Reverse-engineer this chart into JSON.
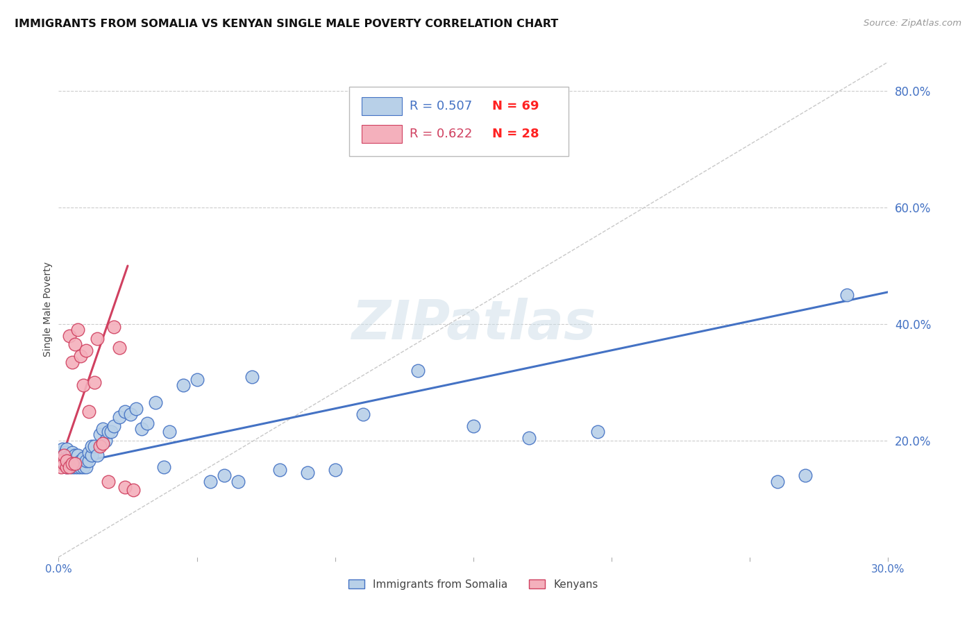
{
  "title": "IMMIGRANTS FROM SOMALIA VS KENYAN SINGLE MALE POVERTY CORRELATION CHART",
  "source": "Source: ZipAtlas.com",
  "ylabel": "Single Male Poverty",
  "xlim": [
    0.0,
    0.3
  ],
  "ylim": [
    0.0,
    0.85
  ],
  "xticks": [
    0.0,
    0.05,
    0.1,
    0.15,
    0.2,
    0.25,
    0.3
  ],
  "xticklabels": [
    "0.0%",
    "",
    "",
    "",
    "",
    "",
    "30.0%"
  ],
  "yticks_right": [
    0.2,
    0.4,
    0.6,
    0.8
  ],
  "ytick_labels_right": [
    "20.0%",
    "40.0%",
    "60.0%",
    "80.0%"
  ],
  "legend_r1": "0.507",
  "legend_n1": "69",
  "legend_r2": "0.622",
  "legend_n2": "28",
  "legend_label1": "Immigrants from Somalia",
  "legend_label2": "Kenyans",
  "watermark": "ZIPatlas",
  "blue_scatter_x": [
    0.0005,
    0.001,
    0.001,
    0.0015,
    0.0015,
    0.002,
    0.002,
    0.0025,
    0.0025,
    0.003,
    0.003,
    0.003,
    0.0035,
    0.004,
    0.004,
    0.0045,
    0.005,
    0.005,
    0.005,
    0.006,
    0.006,
    0.006,
    0.007,
    0.007,
    0.007,
    0.008,
    0.008,
    0.009,
    0.009,
    0.01,
    0.01,
    0.011,
    0.011,
    0.012,
    0.012,
    0.013,
    0.014,
    0.015,
    0.016,
    0.017,
    0.018,
    0.019,
    0.02,
    0.022,
    0.024,
    0.026,
    0.028,
    0.03,
    0.032,
    0.035,
    0.038,
    0.04,
    0.045,
    0.05,
    0.055,
    0.06,
    0.065,
    0.07,
    0.08,
    0.09,
    0.1,
    0.11,
    0.13,
    0.15,
    0.17,
    0.195,
    0.26,
    0.27,
    0.285
  ],
  "blue_scatter_y": [
    0.175,
    0.165,
    0.18,
    0.17,
    0.185,
    0.16,
    0.175,
    0.165,
    0.18,
    0.155,
    0.17,
    0.185,
    0.165,
    0.16,
    0.175,
    0.17,
    0.155,
    0.165,
    0.18,
    0.155,
    0.165,
    0.175,
    0.155,
    0.16,
    0.175,
    0.155,
    0.165,
    0.155,
    0.17,
    0.155,
    0.165,
    0.165,
    0.18,
    0.175,
    0.19,
    0.19,
    0.175,
    0.21,
    0.22,
    0.2,
    0.215,
    0.215,
    0.225,
    0.24,
    0.25,
    0.245,
    0.255,
    0.22,
    0.23,
    0.265,
    0.155,
    0.215,
    0.295,
    0.305,
    0.13,
    0.14,
    0.13,
    0.31,
    0.15,
    0.145,
    0.15,
    0.245,
    0.32,
    0.225,
    0.205,
    0.215,
    0.13,
    0.14,
    0.45
  ],
  "pink_scatter_x": [
    0.0005,
    0.001,
    0.001,
    0.0015,
    0.002,
    0.002,
    0.003,
    0.003,
    0.004,
    0.004,
    0.005,
    0.005,
    0.006,
    0.006,
    0.007,
    0.008,
    0.009,
    0.01,
    0.011,
    0.013,
    0.014,
    0.015,
    0.016,
    0.018,
    0.02,
    0.022,
    0.024,
    0.027
  ],
  "pink_scatter_y": [
    0.16,
    0.155,
    0.165,
    0.165,
    0.16,
    0.175,
    0.155,
    0.165,
    0.155,
    0.38,
    0.16,
    0.335,
    0.16,
    0.365,
    0.39,
    0.345,
    0.295,
    0.355,
    0.25,
    0.3,
    0.375,
    0.19,
    0.195,
    0.13,
    0.395,
    0.36,
    0.12,
    0.115
  ],
  "blue_line_x": [
    0.0,
    0.3
  ],
  "blue_line_y": [
    0.155,
    0.455
  ],
  "pink_line_x": [
    0.0,
    0.025
  ],
  "pink_line_y": [
    0.155,
    0.5
  ],
  "diag_line_x": [
    0.0,
    0.3
  ],
  "diag_line_y": [
    0.0,
    0.85
  ],
  "blue_color": "#b8d0e8",
  "blue_line_color": "#4472c4",
  "pink_color": "#f4b0bc",
  "pink_line_color": "#d04060",
  "r_color_blue": "#4472c4",
  "r_color_pink": "#d04060",
  "n_color": "#ff2222",
  "grid_color": "#cccccc",
  "title_color": "#111111",
  "axis_label_color": "#444444",
  "right_tick_color": "#4472c4",
  "background_color": "#ffffff"
}
